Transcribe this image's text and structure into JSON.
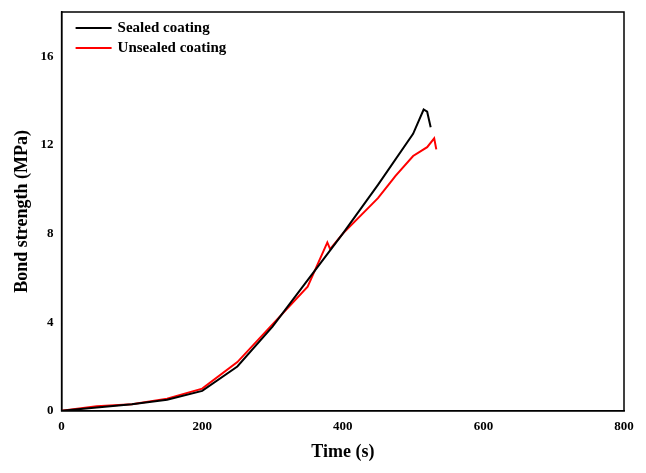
{
  "chart_data": {
    "type": "line",
    "x_label": "Time (s)",
    "y_label": "Bond strength (MPa)",
    "series": [
      {
        "name": "Sealed coating",
        "color": "#000000",
        "x": [
          0,
          50,
          100,
          150,
          200,
          250,
          300,
          350,
          400,
          450,
          500,
          515,
          520,
          525
        ],
        "values": [
          0,
          0.15,
          0.3,
          0.5,
          0.9,
          2.0,
          3.8,
          5.9,
          8.0,
          10.2,
          12.5,
          13.6,
          13.5,
          12.8
        ]
      },
      {
        "name": "Unsealed coating",
        "color": "#ff0000",
        "x": [
          0,
          50,
          100,
          150,
          200,
          250,
          300,
          350,
          378,
          382,
          400,
          450,
          470,
          475,
          500,
          520,
          530,
          533
        ],
        "values": [
          0,
          0.2,
          0.3,
          0.55,
          1.0,
          2.2,
          3.9,
          5.6,
          7.6,
          7.3,
          8.0,
          9.6,
          10.4,
          10.6,
          11.5,
          11.9,
          12.3,
          11.8
        ]
      }
    ],
    "xlim": [
      0,
      800
    ],
    "xticks": [
      0,
      200,
      400,
      600,
      800
    ],
    "ylim": [
      0,
      18
    ],
    "yticks": [
      0,
      4,
      8,
      12,
      16
    ],
    "grid": false,
    "legend": "upper left"
  }
}
